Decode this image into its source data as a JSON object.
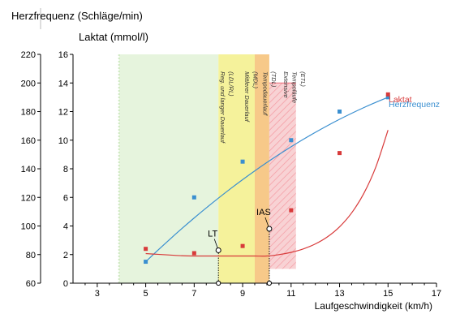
{
  "chart_data": {
    "type": "line",
    "y_label_left_outer": "Herzfrequenz (Schläge/min)",
    "y_label_left_inner": "Laktat (mmol/l)",
    "xlabel": "Laufgeschwindigkeit (km/h)",
    "x_ticks": [
      3,
      5,
      7,
      9,
      11,
      13,
      15,
      17
    ],
    "x_tick_labels": [
      "3",
      "5",
      "7",
      "9",
      "11",
      "13",
      "15",
      "17"
    ],
    "xlim": [
      2,
      17
    ],
    "hr_ticks": [
      60,
      80,
      100,
      120,
      140,
      160,
      180,
      200,
      220
    ],
    "hr_tick_labels": [
      "60",
      "80",
      "100",
      "120",
      "140",
      "160",
      "180",
      "200",
      "220"
    ],
    "hr_lim": [
      60,
      220
    ],
    "lac_ticks": [
      0,
      2,
      4,
      6,
      8,
      10,
      12,
      14,
      16
    ],
    "lac_tick_labels": [
      "0",
      "2",
      "4",
      "6",
      "8",
      "10",
      "12",
      "14",
      "16"
    ],
    "lac_lim": [
      0,
      16
    ],
    "grid": false,
    "zones": [
      {
        "x0": 3.9,
        "x1": 8.0,
        "color": "#e6f4dd",
        "label": "",
        "hatched": false
      },
      {
        "x0": 8.0,
        "x1": 9.5,
        "color": "#f5f29b",
        "label": "",
        "hatched": false
      },
      {
        "x0": 9.5,
        "x1": 10.1,
        "color": "#f7c989",
        "label": "",
        "hatched": false
      },
      {
        "x0": 10.1,
        "x1": 11.2,
        "color": "#f8d2d4",
        "label": "",
        "hatched": true
      }
    ],
    "zone_texts": [
      {
        "x": 8.0,
        "text": "Reg. und langer Dauerlauf"
      },
      {
        "x": 8.35,
        "text": "(LDL/RL)"
      },
      {
        "x": 9.0,
        "text": "Mittlerer Dauerlauf"
      },
      {
        "x": 9.35,
        "text": "(MDL)"
      },
      {
        "x": 9.75,
        "text": "Tempodauerlauf"
      },
      {
        "x": 10.1,
        "text": "(TDL)"
      },
      {
        "x": 10.6,
        "text": "Extensive"
      },
      {
        "x": 10.95,
        "text": "Tempoläufe"
      },
      {
        "x": 11.3,
        "text": "(ETL)"
      }
    ],
    "series": [
      {
        "name": "Herzfrequenz",
        "axis": "hr",
        "color": "#3a8fd0",
        "x": [
          5,
          7,
          9,
          11,
          13,
          15
        ],
        "y": [
          75,
          120,
          145,
          160,
          180,
          190
        ]
      },
      {
        "name": "Laktat",
        "axis": "lac",
        "color": "#d83a3a",
        "x": [
          5,
          7,
          9,
          11,
          13,
          15
        ],
        "y": [
          2.4,
          2.1,
          2.6,
          5.1,
          9.1,
          13.2
        ]
      }
    ],
    "thresholds": [
      {
        "name": "LT",
        "x": 8.0,
        "lactate": 2.3
      },
      {
        "name": "IAS",
        "x": 10.1,
        "lactate": 3.8
      }
    ]
  }
}
